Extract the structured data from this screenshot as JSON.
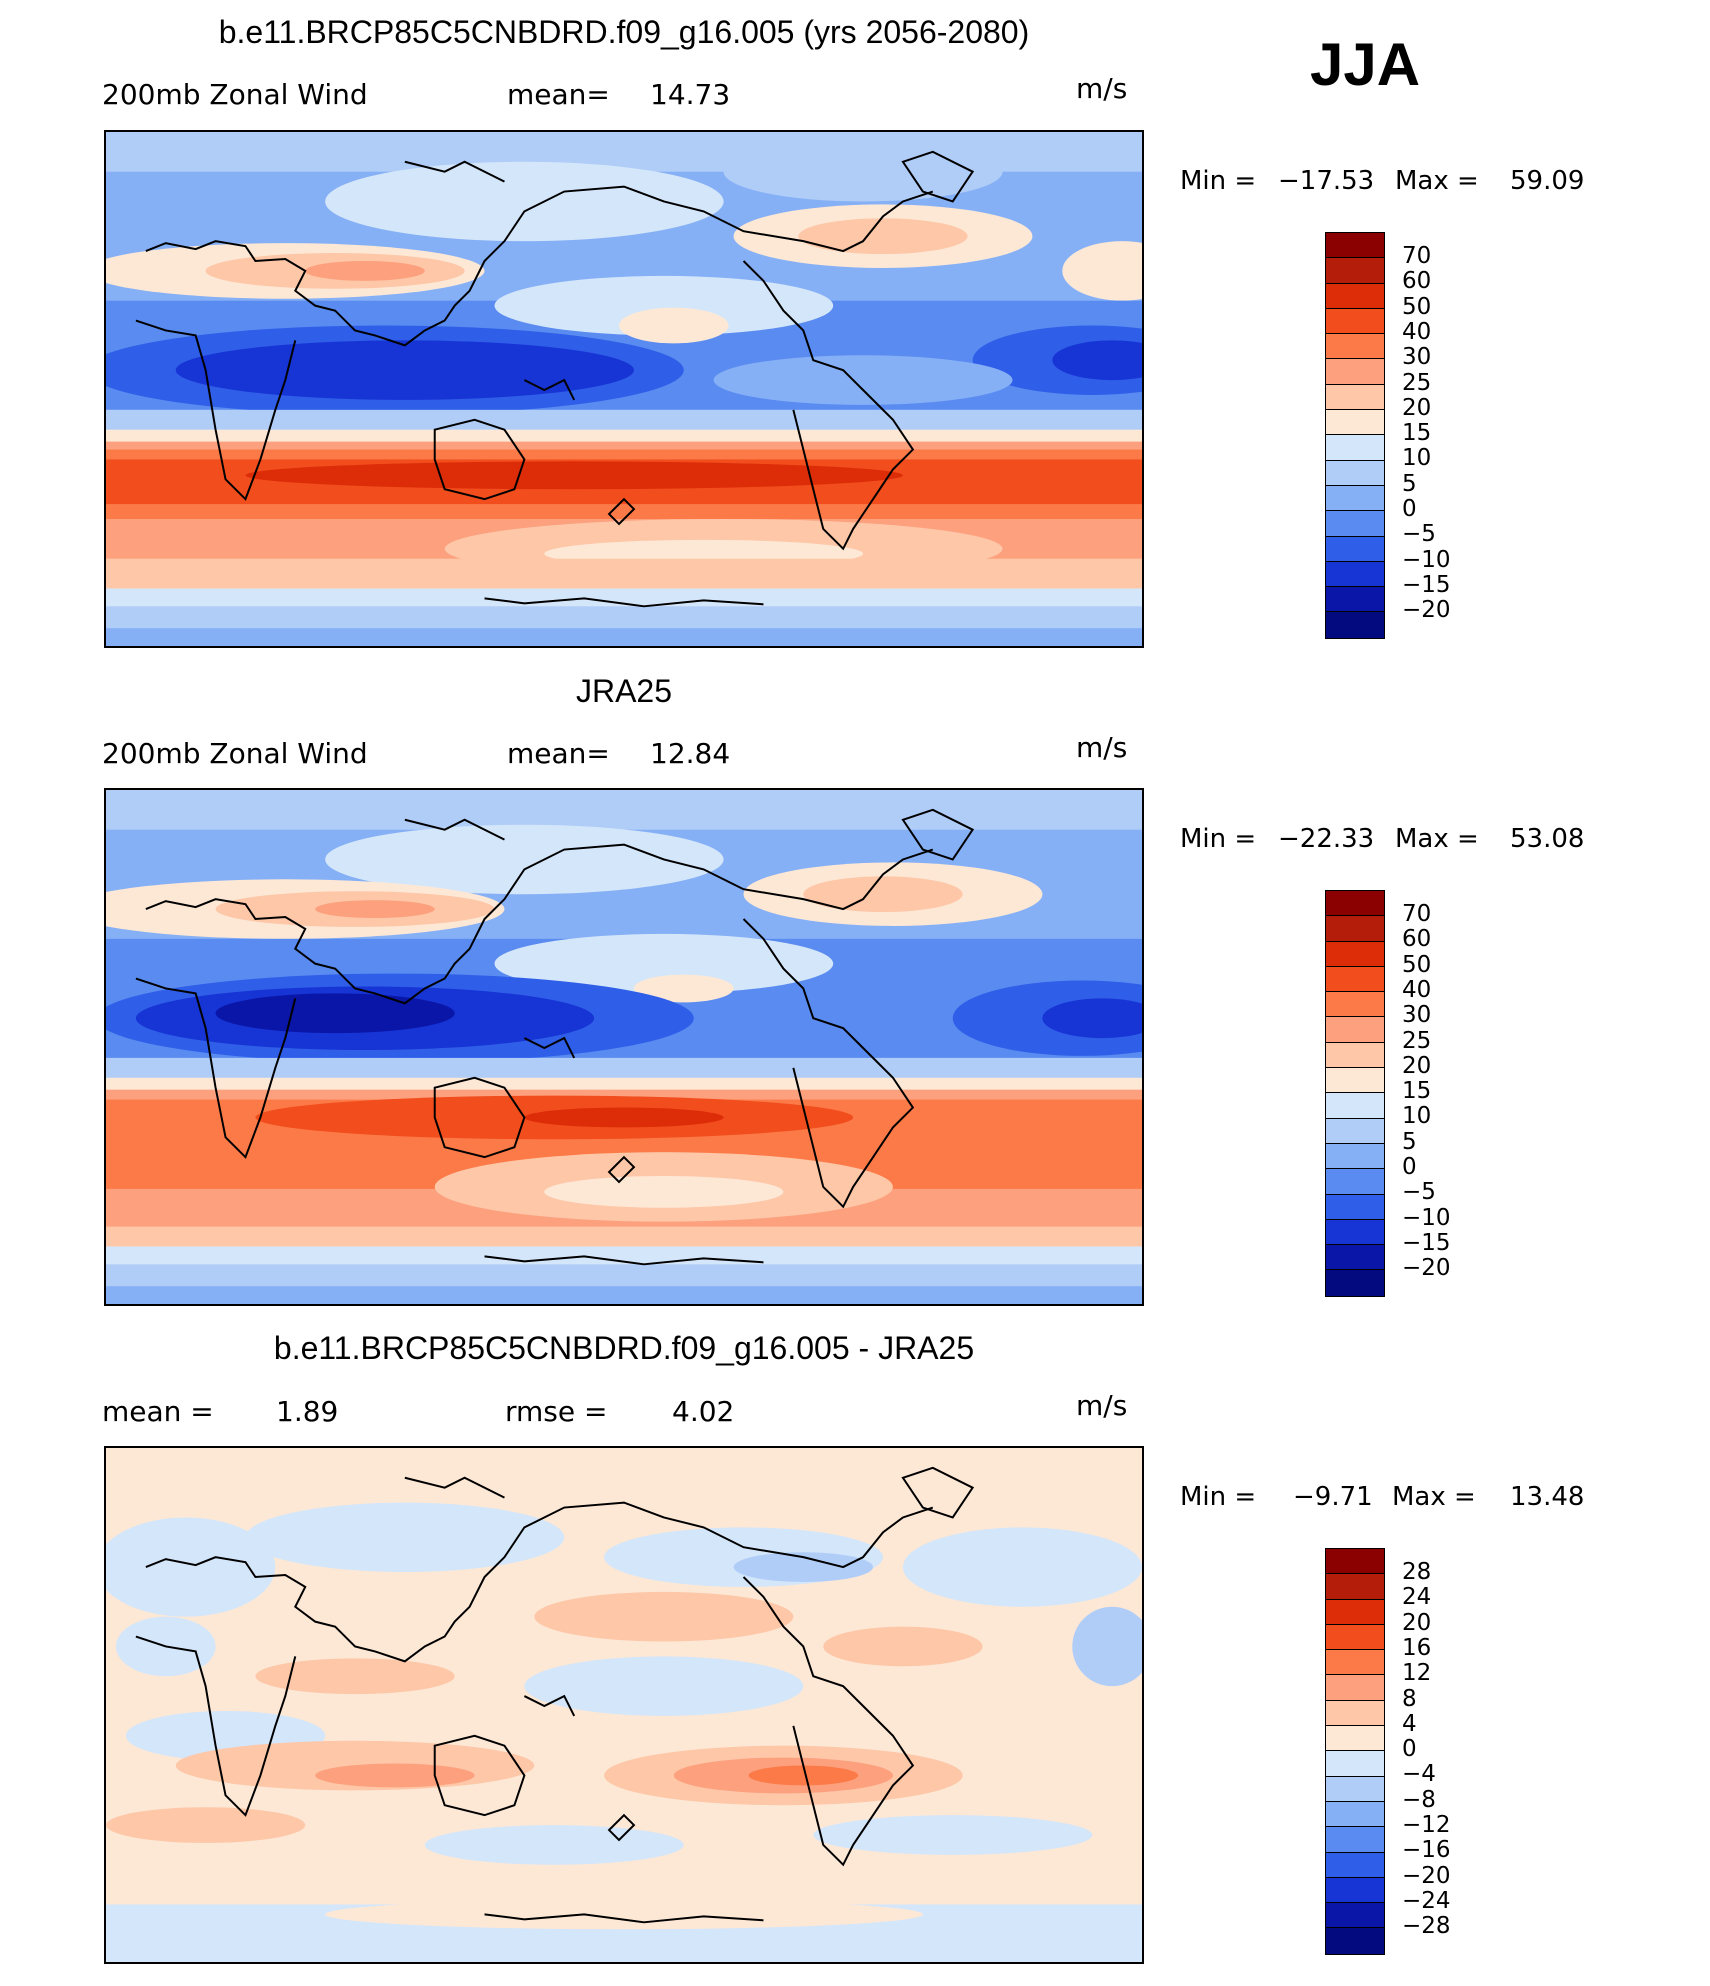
{
  "season": "JJA",
  "panels": [
    {
      "title": "b.e11.BRCP85C5CNBDRD.f09_g16.005 (yrs 2056-2080)",
      "left_label": "200mb Zonal Wind",
      "stat_label": "mean=",
      "stat_value": "14.73",
      "units": "m/s",
      "min_label": "Min =",
      "min_value": "−17.53",
      "max_label": "Max =",
      "max_value": "59.09",
      "colorbar_labels": [
        "70",
        "60",
        "50",
        "40",
        "30",
        "25",
        "20",
        "15",
        "10",
        "5",
        "0",
        "−5",
        "−10",
        "−15",
        "−20"
      ],
      "colorbar_colors": [
        "#8b0000",
        "#b51d0b",
        "#dd2c08",
        "#f24d1d",
        "#fc7a48",
        "#fda07e",
        "#fdc7a8",
        "#fde8d6",
        "#d4e6fa",
        "#b0cdf8",
        "#86b0f5",
        "#5a8bf0",
        "#2f5ee8",
        "#1734d4",
        "#0a16a8",
        "#030a80"
      ]
    },
    {
      "title": "JRA25",
      "left_label": "200mb Zonal Wind",
      "stat_label": "mean=",
      "stat_value": "12.84",
      "units": "m/s",
      "min_label": "Min =",
      "min_value": "−22.33",
      "max_label": "Max =",
      "max_value": "53.08",
      "colorbar_labels": [
        "70",
        "60",
        "50",
        "40",
        "30",
        "25",
        "20",
        "15",
        "10",
        "5",
        "0",
        "−5",
        "−10",
        "−15",
        "−20"
      ],
      "colorbar_colors": [
        "#8b0000",
        "#b51d0b",
        "#dd2c08",
        "#f24d1d",
        "#fc7a48",
        "#fda07e",
        "#fdc7a8",
        "#fde8d6",
        "#d4e6fa",
        "#b0cdf8",
        "#86b0f5",
        "#5a8bf0",
        "#2f5ee8",
        "#1734d4",
        "#0a16a8",
        "#030a80"
      ]
    },
    {
      "title": "b.e11.BRCP85C5CNBDRD.f09_g16.005 - JRA25",
      "left_label": "mean =",
      "left_value": "1.89",
      "stat_label": "rmse =",
      "stat_value": "4.02",
      "units": "m/s",
      "min_label": "Min =",
      "min_value": "−9.71",
      "max_label": "Max =",
      "max_value": "13.48",
      "colorbar_labels": [
        "28",
        "24",
        "20",
        "16",
        "12",
        "8",
        "4",
        "0",
        "−4",
        "−8",
        "−12",
        "−16",
        "−20",
        "−24",
        "−28"
      ],
      "colorbar_colors": [
        "#8b0000",
        "#b51d0b",
        "#dd2c08",
        "#f24d1d",
        "#fc7a48",
        "#fda07e",
        "#fdc7a8",
        "#fde8d6",
        "#d4e6fa",
        "#b0cdf8",
        "#86b0f5",
        "#5a8bf0",
        "#2f5ee8",
        "#1734d4",
        "#0a16a8",
        "#030a80"
      ]
    }
  ]
}
